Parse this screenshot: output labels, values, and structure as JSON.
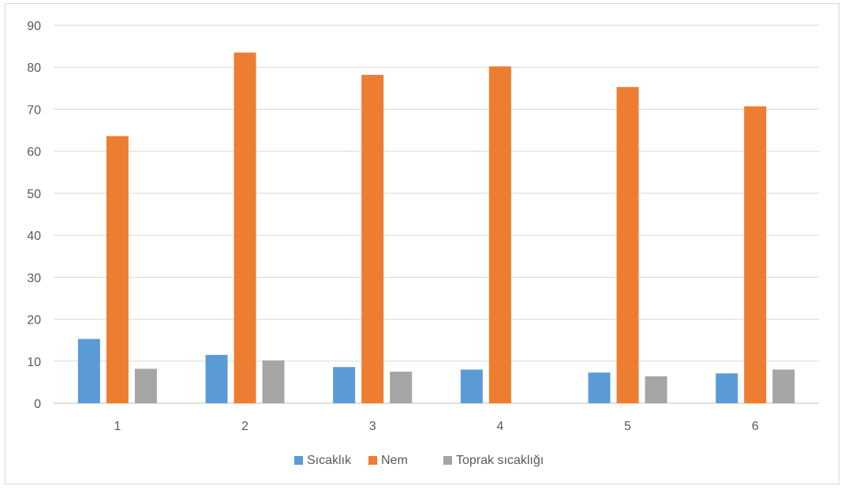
{
  "chart_data": {
    "type": "bar",
    "categories": [
      "1",
      "2",
      "3",
      "4",
      "5",
      "6"
    ],
    "series": [
      {
        "name": "Sıcaklık",
        "color": "#5b9bd5",
        "values": [
          15.3,
          11.5,
          8.6,
          8.0,
          7.3,
          7.1
        ]
      },
      {
        "name": "Nem",
        "color": "#ed7d31",
        "values": [
          63.6,
          83.5,
          78.2,
          80.2,
          75.3,
          70.7
        ]
      },
      {
        "name": "Toprak sıcaklığı",
        "color": "#a5a5a5",
        "values": [
          8.2,
          10.2,
          7.5,
          0,
          6.4,
          8.0
        ]
      }
    ],
    "title": "",
    "xlabel": "",
    "ylabel": "",
    "ylim": [
      0,
      90
    ],
    "yticks": [
      "0",
      "10",
      "20",
      "30",
      "40",
      "50",
      "60",
      "70",
      "80",
      "90"
    ],
    "grid": true,
    "legend_position": "bottom"
  }
}
